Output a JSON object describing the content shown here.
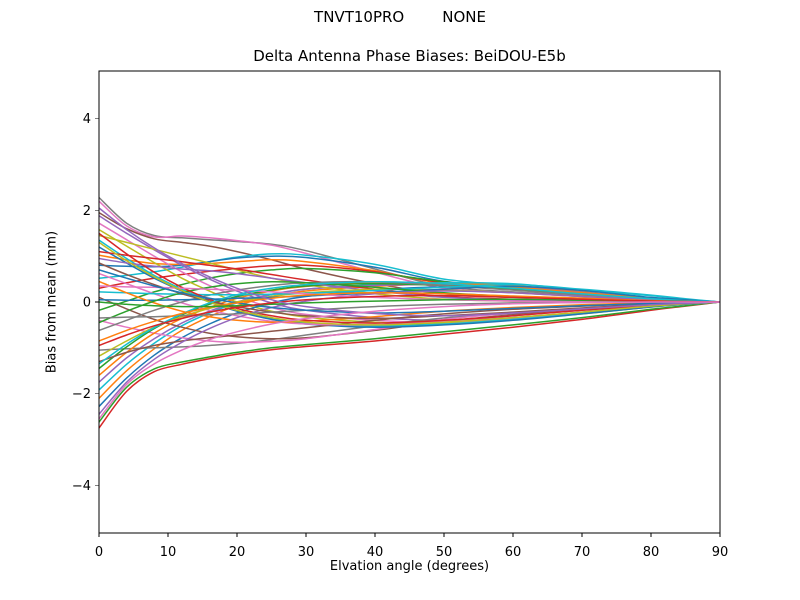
{
  "background": "#ffffff",
  "text_color": "#000000",
  "chart_data": {
    "type": "line",
    "suptitle_left": "TNVT10PRO",
    "suptitle_right": "NONE",
    "title": "Delta Antenna Phase Biases: BeiDOU-E5b",
    "xlabel": "Elvation angle (degrees)",
    "ylabel": "Bias from mean (mm)",
    "xlim": [
      0,
      90
    ],
    "ylim": [
      -5.04,
      5.04
    ],
    "x_ticks": [
      0,
      10,
      20,
      30,
      40,
      50,
      60,
      70,
      80,
      90
    ],
    "x_tick_labels": [
      "0",
      "10",
      "20",
      "30",
      "40",
      "50",
      "60",
      "70",
      "80",
      "90"
    ],
    "y_ticks": [
      -4,
      -2,
      0,
      2,
      4
    ],
    "y_tick_labels": [
      "−4",
      "−2",
      "0",
      "2",
      "4"
    ],
    "grid": false,
    "legend": "none",
    "line_width": 1.5,
    "x": [
      0,
      4,
      8,
      12,
      16,
      20,
      25,
      30,
      40,
      50,
      60,
      70,
      80,
      85,
      90
    ],
    "series": [
      {
        "name": "line-01",
        "color": "#7f7f7f",
        "values": [
          2.28,
          1.72,
          1.45,
          1.4,
          1.36,
          1.32,
          1.26,
          1.12,
          0.72,
          0.34,
          0.22,
          0.14,
          0.05,
          0.02,
          0
        ]
      },
      {
        "name": "line-02",
        "color": "#e377c2",
        "values": [
          2.2,
          1.66,
          1.42,
          1.44,
          1.4,
          1.34,
          1.24,
          1.06,
          0.65,
          0.3,
          0.2,
          0.12,
          0.04,
          0.02,
          0
        ]
      },
      {
        "name": "line-03",
        "color": "#8c564b",
        "values": [
          1.95,
          1.6,
          1.38,
          1.3,
          1.22,
          1.1,
          0.92,
          0.72,
          0.4,
          0.18,
          0.12,
          0.08,
          0.03,
          0.01,
          0
        ]
      },
      {
        "name": "line-04",
        "color": "#d62728",
        "values": [
          -2.75,
          -1.95,
          -1.52,
          -1.36,
          -1.24,
          -1.14,
          -1.04,
          -0.97,
          -0.85,
          -0.7,
          -0.55,
          -0.38,
          -0.18,
          -0.09,
          0
        ]
      },
      {
        "name": "line-05",
        "color": "#2ca02c",
        "values": [
          -2.62,
          -1.86,
          -1.46,
          -1.31,
          -1.2,
          -1.1,
          -1.0,
          -0.93,
          -0.8,
          -0.65,
          -0.5,
          -0.34,
          -0.16,
          -0.08,
          0
        ]
      },
      {
        "name": "line-06",
        "color": "#17becf",
        "values": [
          0.52,
          0.58,
          0.66,
          0.76,
          0.88,
          0.98,
          1.05,
          1.02,
          0.82,
          0.5,
          0.36,
          0.22,
          0.08,
          0.04,
          0
        ]
      },
      {
        "name": "line-07",
        "color": "#1f77b4",
        "values": [
          0.8,
          0.78,
          0.77,
          0.8,
          0.88,
          0.96,
          1.0,
          0.97,
          0.76,
          0.45,
          0.33,
          0.2,
          0.07,
          0.03,
          0
        ]
      },
      {
        "name": "line-08",
        "color": "#ff7f0e",
        "values": [
          1.02,
          0.92,
          0.84,
          0.82,
          0.84,
          0.88,
          0.92,
          0.88,
          0.68,
          0.4,
          0.3,
          0.18,
          0.06,
          0.03,
          0
        ]
      },
      {
        "name": "line-09",
        "color": "#d62728",
        "values": [
          0.3,
          0.42,
          0.52,
          0.6,
          0.67,
          0.73,
          0.79,
          0.8,
          0.66,
          0.42,
          0.3,
          0.18,
          0.07,
          0.03,
          0
        ]
      },
      {
        "name": "line-10",
        "color": "#2ca02c",
        "values": [
          -0.18,
          0.02,
          0.22,
          0.38,
          0.52,
          0.62,
          0.7,
          0.73,
          0.64,
          0.44,
          0.3,
          0.17,
          0.06,
          0.03,
          0
        ]
      },
      {
        "name": "line-11",
        "color": "#9467bd",
        "values": [
          1.88,
          1.5,
          1.14,
          0.8,
          0.5,
          0.24,
          -0.02,
          -0.18,
          -0.34,
          -0.4,
          -0.34,
          -0.22,
          -0.08,
          -0.04,
          0
        ]
      },
      {
        "name": "line-12",
        "color": "#e377c2",
        "values": [
          1.72,
          1.36,
          1.0,
          0.66,
          0.36,
          0.12,
          -0.12,
          -0.27,
          -0.4,
          -0.44,
          -0.36,
          -0.24,
          -0.1,
          -0.05,
          0
        ]
      },
      {
        "name": "line-13",
        "color": "#bcbd22",
        "values": [
          1.58,
          1.22,
          0.86,
          0.52,
          0.24,
          0.0,
          -0.2,
          -0.33,
          -0.44,
          -0.47,
          -0.38,
          -0.26,
          -0.11,
          -0.05,
          0
        ]
      },
      {
        "name": "line-14",
        "color": "#1f77b4",
        "values": [
          -2.28,
          -1.66,
          -1.16,
          -0.78,
          -0.48,
          -0.24,
          -0.02,
          0.12,
          0.26,
          0.33,
          0.28,
          0.18,
          0.07,
          0.03,
          0
        ]
      },
      {
        "name": "line-15",
        "color": "#ff7f0e",
        "values": [
          -2.1,
          -1.5,
          -1.02,
          -0.62,
          -0.32,
          -0.08,
          0.12,
          0.24,
          0.34,
          0.4,
          0.36,
          0.22,
          0.08,
          0.04,
          0
        ]
      },
      {
        "name": "line-16",
        "color": "#17becf",
        "values": [
          -1.92,
          -1.36,
          -0.9,
          -0.52,
          -0.24,
          -0.02,
          0.16,
          0.28,
          0.38,
          0.42,
          0.4,
          0.26,
          0.14,
          0.06,
          0
        ]
      },
      {
        "name": "line-17",
        "color": "#9467bd",
        "values": [
          -1.75,
          -1.22,
          -0.8,
          -0.46,
          -0.2,
          0.0,
          0.17,
          0.28,
          0.36,
          0.38,
          0.33,
          0.21,
          0.08,
          0.04,
          0
        ]
      },
      {
        "name": "line-18",
        "color": "#7f7f7f",
        "values": [
          -1.05,
          -1.02,
          -1.0,
          -0.98,
          -0.95,
          -0.9,
          -0.82,
          -0.72,
          -0.52,
          -0.35,
          -0.25,
          -0.15,
          -0.06,
          -0.03,
          0
        ]
      },
      {
        "name": "line-19",
        "color": "#8c564b",
        "values": [
          0.1,
          -0.15,
          -0.38,
          -0.55,
          -0.68,
          -0.76,
          -0.8,
          -0.78,
          -0.62,
          -0.42,
          -0.28,
          -0.16,
          -0.06,
          -0.03,
          0
        ]
      },
      {
        "name": "line-20",
        "color": "#e377c2",
        "values": [
          -0.4,
          -0.55,
          -0.68,
          -0.78,
          -0.85,
          -0.88,
          -0.86,
          -0.8,
          -0.6,
          -0.38,
          -0.24,
          -0.14,
          -0.05,
          -0.02,
          0
        ]
      },
      {
        "name": "line-21",
        "color": "#bcbd22",
        "values": [
          1.45,
          1.3,
          1.15,
          1.0,
          0.85,
          0.7,
          0.52,
          0.38,
          0.18,
          0.06,
          0.02,
          0.01,
          0,
          0,
          0
        ]
      },
      {
        "name": "line-22",
        "color": "#17becf",
        "values": [
          1.35,
          0.95,
          0.58,
          0.28,
          0.02,
          -0.18,
          -0.36,
          -0.46,
          -0.52,
          -0.48,
          -0.38,
          -0.25,
          -0.1,
          -0.05,
          0
        ]
      },
      {
        "name": "line-23",
        "color": "#1f77b4",
        "values": [
          1.2,
          0.85,
          0.52,
          0.24,
          0.0,
          -0.2,
          -0.38,
          -0.48,
          -0.55,
          -0.5,
          -0.4,
          -0.26,
          -0.11,
          -0.05,
          0
        ]
      },
      {
        "name": "line-24",
        "color": "#ff7f0e",
        "values": [
          -1.6,
          -1.1,
          -0.68,
          -0.36,
          -0.12,
          0.08,
          0.24,
          0.34,
          0.42,
          0.4,
          0.32,
          0.2,
          0.08,
          0.04,
          0
        ]
      },
      {
        "name": "line-25",
        "color": "#2ca02c",
        "values": [
          -1.45,
          -0.98,
          -0.58,
          -0.28,
          -0.05,
          0.12,
          0.26,
          0.35,
          0.4,
          0.36,
          0.28,
          0.17,
          0.06,
          0.03,
          0
        ]
      },
      {
        "name": "line-26",
        "color": "#d62728",
        "values": [
          1.1,
          1.02,
          0.95,
          0.88,
          0.8,
          0.72,
          0.6,
          0.48,
          0.28,
          0.12,
          0.06,
          0.03,
          0.01,
          0,
          0
        ]
      },
      {
        "name": "line-27",
        "color": "#9467bd",
        "values": [
          0.95,
          0.85,
          0.78,
          0.72,
          0.68,
          0.62,
          0.52,
          0.42,
          0.24,
          0.1,
          0.05,
          0.02,
          0.01,
          0,
          0
        ]
      },
      {
        "name": "line-28",
        "color": "#8c564b",
        "values": [
          -1.3,
          -1.1,
          -0.95,
          -0.85,
          -0.78,
          -0.72,
          -0.64,
          -0.56,
          -0.4,
          -0.26,
          -0.16,
          -0.09,
          -0.03,
          -0.01,
          0
        ]
      },
      {
        "name": "line-29",
        "color": "#e377c2",
        "values": [
          0.62,
          0.4,
          0.18,
          -0.02,
          -0.18,
          -0.3,
          -0.42,
          -0.48,
          -0.5,
          -0.42,
          -0.3,
          -0.18,
          -0.07,
          -0.03,
          0
        ]
      },
      {
        "name": "line-30",
        "color": "#7f7f7f",
        "values": [
          -0.62,
          -0.4,
          -0.18,
          0.0,
          0.15,
          0.26,
          0.36,
          0.42,
          0.44,
          0.36,
          0.26,
          0.15,
          0.06,
          0.03,
          0
        ]
      },
      {
        "name": "line-31",
        "color": "#bcbd22",
        "values": [
          -1.18,
          -0.85,
          -0.55,
          -0.32,
          -0.14,
          0.0,
          0.12,
          0.2,
          0.28,
          0.26,
          0.2,
          0.12,
          0.05,
          0.02,
          0
        ]
      },
      {
        "name": "line-32",
        "color": "#17becf",
        "values": [
          0.22,
          0.2,
          0.18,
          0.17,
          0.16,
          0.16,
          0.17,
          0.19,
          0.25,
          0.32,
          0.38,
          0.28,
          0.15,
          0.07,
          0
        ]
      },
      {
        "name": "line-33",
        "color": "#1f77b4",
        "values": [
          0.05,
          0.04,
          0.04,
          0.05,
          0.06,
          0.08,
          0.1,
          0.13,
          0.2,
          0.28,
          0.34,
          0.25,
          0.1,
          0.05,
          0
        ]
      },
      {
        "name": "line-34",
        "color": "#ff7f0e",
        "values": [
          0.45,
          0.2,
          -0.02,
          -0.2,
          -0.32,
          -0.4,
          -0.44,
          -0.42,
          -0.32,
          -0.2,
          -0.12,
          -0.06,
          -0.02,
          -0.01,
          0
        ]
      },
      {
        "name": "line-35",
        "color": "#2ca02c",
        "values": [
          -0.45,
          -0.2,
          0.02,
          0.2,
          0.32,
          0.4,
          0.44,
          0.42,
          0.32,
          0.2,
          0.12,
          0.06,
          0.02,
          0.01,
          0
        ]
      },
      {
        "name": "line-36",
        "color": "#d62728",
        "values": [
          1.5,
          1.05,
          0.65,
          0.32,
          0.06,
          -0.14,
          -0.3,
          -0.4,
          -0.46,
          -0.4,
          -0.3,
          -0.18,
          -0.07,
          -0.03,
          0
        ]
      },
      {
        "name": "line-37",
        "color": "#9467bd",
        "values": [
          -2.45,
          -1.75,
          -1.25,
          -0.88,
          -0.58,
          -0.34,
          -0.12,
          0.02,
          0.18,
          0.24,
          0.2,
          0.12,
          0.05,
          0.02,
          0
        ]
      },
      {
        "name": "line-38",
        "color": "#8c564b",
        "values": [
          0.85,
          0.6,
          0.38,
          0.18,
          0.02,
          -0.1,
          -0.22,
          -0.3,
          -0.36,
          -0.3,
          -0.22,
          -0.13,
          -0.05,
          -0.02,
          0
        ]
      },
      {
        "name": "line-39",
        "color": "#e377c2",
        "values": [
          0.35,
          0.33,
          0.32,
          0.3,
          0.28,
          0.26,
          0.22,
          0.18,
          0.1,
          0.05,
          0.02,
          0.01,
          0,
          0,
          0
        ]
      },
      {
        "name": "line-40",
        "color": "#7f7f7f",
        "values": [
          -0.35,
          -0.33,
          -0.32,
          -0.3,
          -0.28,
          -0.26,
          -0.22,
          -0.18,
          -0.1,
          -0.05,
          -0.02,
          -0.01,
          0,
          0,
          0
        ]
      },
      {
        "name": "line-41",
        "color": "#bcbd22",
        "values": [
          1.3,
          0.9,
          0.55,
          0.25,
          0.0,
          -0.18,
          -0.34,
          -0.44,
          -0.5,
          -0.44,
          -0.34,
          -0.22,
          -0.09,
          -0.04,
          0
        ]
      },
      {
        "name": "line-42",
        "color": "#17becf",
        "values": [
          -1.35,
          -0.92,
          -0.56,
          -0.26,
          -0.02,
          0.16,
          0.3,
          0.38,
          0.44,
          0.4,
          0.3,
          0.18,
          0.07,
          0.03,
          0
        ]
      },
      {
        "name": "line-43",
        "color": "#1f77b4",
        "values": [
          0.7,
          0.52,
          0.35,
          0.2,
          0.08,
          -0.02,
          -0.12,
          -0.18,
          -0.24,
          -0.2,
          -0.14,
          -0.08,
          -0.03,
          -0.01,
          0
        ]
      },
      {
        "name": "line-44",
        "color": "#ff7f0e",
        "values": [
          -0.85,
          -0.62,
          -0.42,
          -0.25,
          -0.12,
          -0.02,
          0.08,
          0.15,
          0.2,
          0.18,
          0.13,
          0.08,
          0.03,
          0.01,
          0
        ]
      },
      {
        "name": "line-45",
        "color": "#2ca02c",
        "values": [
          0.0,
          -0.05,
          -0.08,
          -0.1,
          -0.1,
          -0.08,
          -0.05,
          -0.02,
          0.02,
          0.05,
          0.06,
          0.04,
          0.02,
          0.01,
          0
        ]
      },
      {
        "name": "line-46",
        "color": "#d62728",
        "values": [
          -0.95,
          -0.72,
          -0.52,
          -0.36,
          -0.22,
          -0.12,
          -0.02,
          0.05,
          0.12,
          0.14,
          0.1,
          0.06,
          0.02,
          0.01,
          0
        ]
      },
      {
        "name": "line-47",
        "color": "#9467bd",
        "values": [
          2.05,
          1.58,
          1.18,
          0.84,
          0.55,
          0.3,
          0.05,
          -0.1,
          -0.25,
          -0.3,
          -0.24,
          -0.15,
          -0.06,
          -0.03,
          0
        ]
      },
      {
        "name": "line-48",
        "color": "#e377c2",
        "values": [
          -2.55,
          -1.8,
          -1.35,
          -1.05,
          -0.82,
          -0.65,
          -0.48,
          -0.36,
          -0.2,
          -0.1,
          -0.04,
          -0.01,
          0,
          0,
          0
        ]
      }
    ]
  }
}
